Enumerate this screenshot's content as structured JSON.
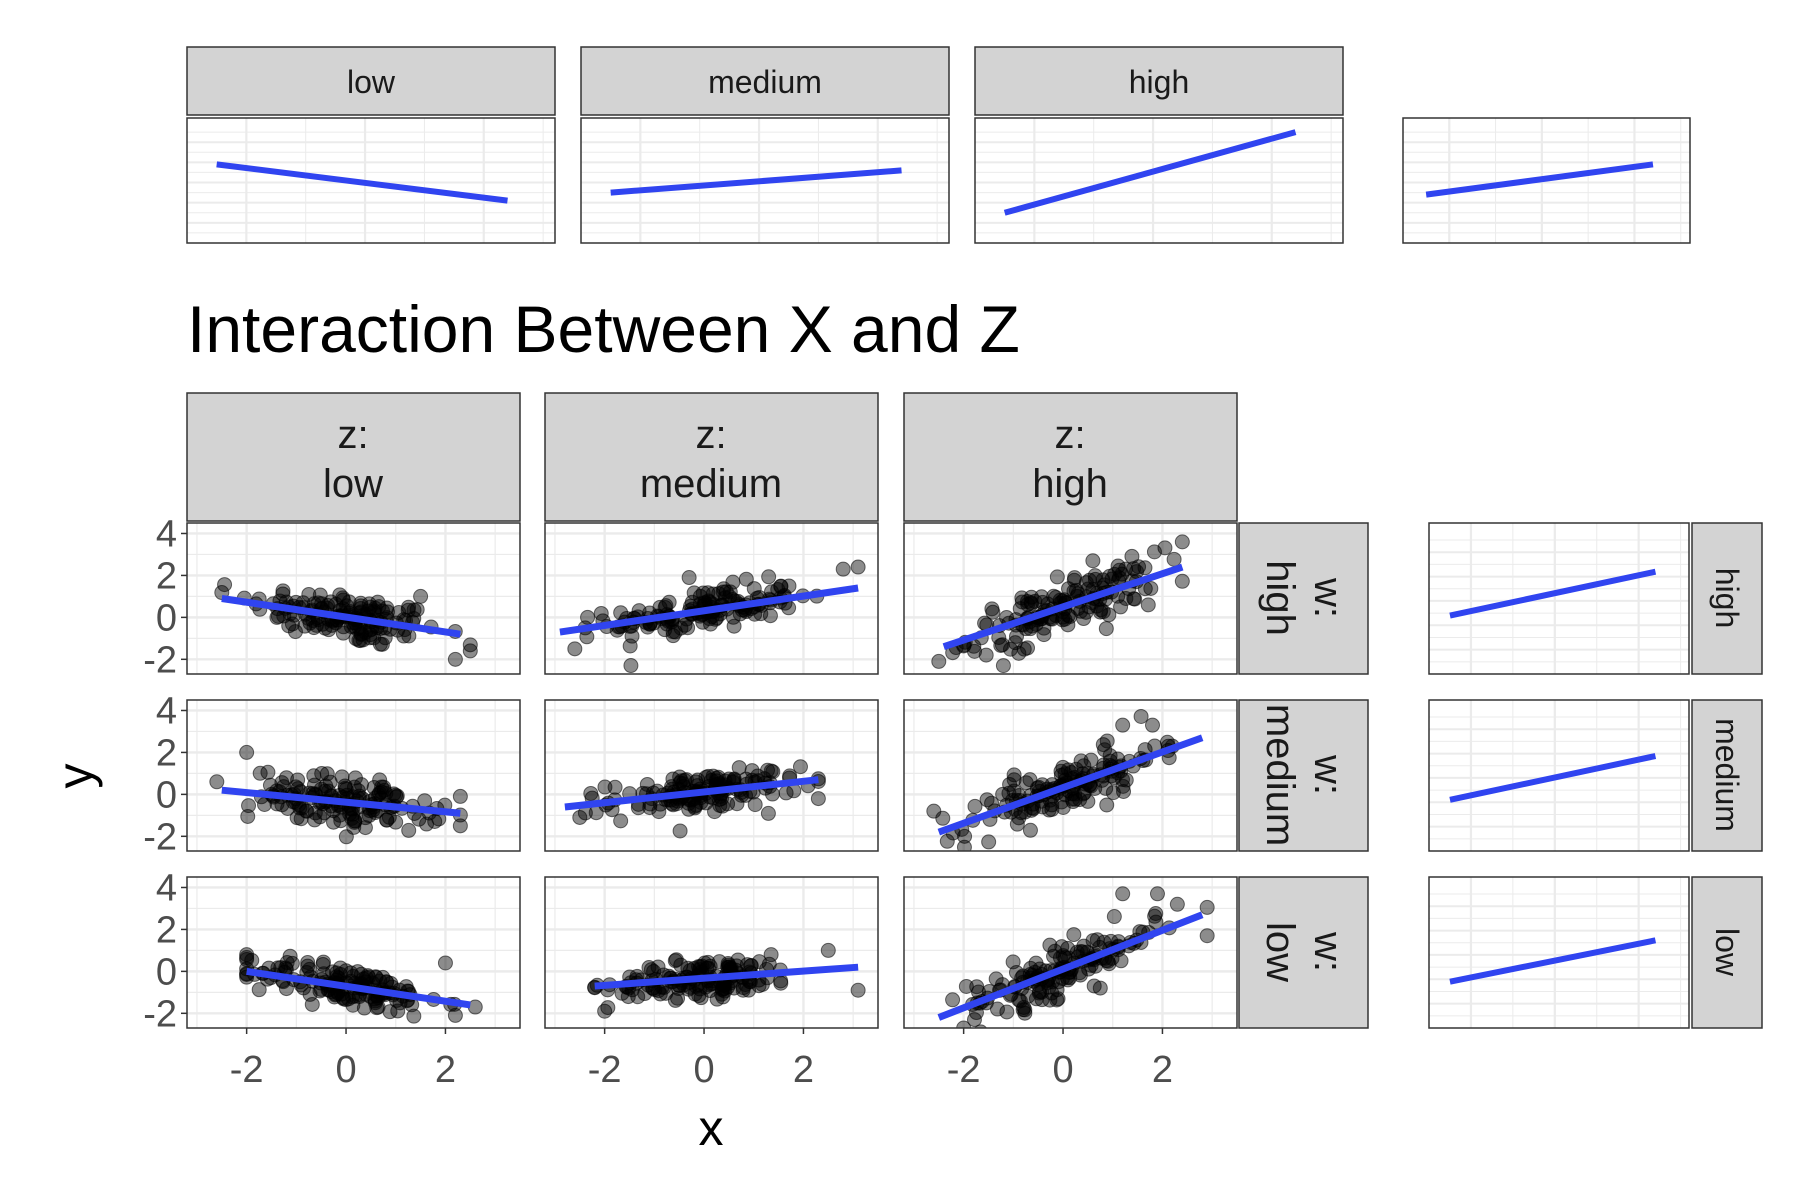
{
  "title": "Interaction Between X and Z",
  "x_axis_title": "x",
  "y_axis_title": "y",
  "x_ticks": [
    "-2",
    "0",
    "2"
  ],
  "y_ticks": [
    "4",
    "2",
    "0",
    "-2"
  ],
  "colors": {
    "fit_line": "#3044f0",
    "points": "#000000",
    "strip_fill": "#d3d3d3",
    "panel_border": "#333333",
    "grid": "#ebebeb"
  },
  "top_strip_labels": [
    "low",
    "medium",
    "high"
  ],
  "z_strip_labels": [
    {
      "prefix": "z:",
      "level": "low"
    },
    {
      "prefix": "z:",
      "level": "medium"
    },
    {
      "prefix": "z:",
      "level": "high"
    }
  ],
  "w_strip_labels": [
    {
      "prefix": "w:",
      "level": "high"
    },
    {
      "prefix": "w:",
      "level": "medium"
    },
    {
      "prefix": "w:",
      "level": "low"
    }
  ],
  "side_strip_labels": [
    "high",
    "medium",
    "low"
  ],
  "chart_data": [
    {
      "type": "line",
      "title": "",
      "panels": [
        "low",
        "medium",
        "high",
        ""
      ],
      "fits": [
        {
          "x": [
            -2.5,
            2.4
          ],
          "y": [
            0.9,
            -0.9
          ]
        },
        {
          "x": [
            -2.5,
            2.4
          ],
          "y": [
            -0.5,
            0.6
          ]
        },
        {
          "x": [
            -2.5,
            2.4
          ],
          "y": [
            -1.5,
            2.5
          ]
        },
        {
          "x": [
            -2.5,
            2.4
          ],
          "y": [
            -0.6,
            0.9
          ]
        }
      ]
    },
    {
      "type": "scatter",
      "title": "Interaction Between X and Z",
      "xlabel": "x",
      "ylabel": "y",
      "xlim": [
        -3.2,
        3.5
      ],
      "ylim": [
        -2.7,
        4.5
      ],
      "x_ticks": [
        -2,
        0,
        2
      ],
      "y_ticks": [
        -2,
        0,
        2,
        4
      ],
      "column_facet": {
        "name": "z",
        "levels": [
          "low",
          "medium",
          "high"
        ]
      },
      "row_facet": {
        "name": "w",
        "levels": [
          "high",
          "medium",
          "low"
        ]
      },
      "points_per_panel": 150,
      "panels": [
        {
          "w": "high",
          "z": "low",
          "fit": {
            "x": [
              -2.5,
              2.3
            ],
            "y": [
              0.9,
              -0.8
            ]
          },
          "x_range": [
            -2.5,
            2.5
          ],
          "residual_sd": 0.6,
          "extra_points": [
            {
              "x": 2.5,
              "y": -1.6
            },
            {
              "x": 2.2,
              "y": -2.0
            },
            {
              "x": 1.5,
              "y": 1.0
            }
          ]
        },
        {
          "w": "high",
          "z": "medium",
          "fit": {
            "x": [
              -2.9,
              3.1
            ],
            "y": [
              -0.7,
              1.4
            ]
          },
          "x_range": [
            -2.9,
            3.1
          ],
          "residual_sd": 0.5,
          "extra_points": [
            {
              "x": 3.1,
              "y": 2.4
            },
            {
              "x": 2.8,
              "y": 2.3
            },
            {
              "x": -0.3,
              "y": 1.9
            },
            {
              "x": -2.6,
              "y": -1.5
            }
          ]
        },
        {
          "w": "high",
          "z": "high",
          "fit": {
            "x": [
              -2.4,
              2.4
            ],
            "y": [
              -1.4,
              2.4
            ]
          },
          "x_range": [
            -2.5,
            2.4
          ],
          "residual_sd": 0.6,
          "extra_points": [
            {
              "x": 2.4,
              "y": 3.6
            },
            {
              "x": 0.6,
              "y": 2.7
            },
            {
              "x": -1.2,
              "y": -2.3
            },
            {
              "x": -2.5,
              "y": -2.1
            }
          ]
        },
        {
          "w": "medium",
          "z": "low",
          "fit": {
            "x": [
              -2.5,
              2.3
            ],
            "y": [
              0.2,
              -0.9
            ]
          },
          "x_range": [
            -2.6,
            2.3
          ],
          "residual_sd": 0.6,
          "extra_points": [
            {
              "x": -2.0,
              "y": 2.0
            },
            {
              "x": 2.3,
              "y": -1.5
            },
            {
              "x": -2.6,
              "y": 0.6
            }
          ]
        },
        {
          "w": "medium",
          "z": "medium",
          "fit": {
            "x": [
              -2.8,
              2.3
            ],
            "y": [
              -0.6,
              0.7
            ]
          },
          "x_range": [
            -2.8,
            2.3
          ],
          "residual_sd": 0.45,
          "extra_points": [
            {
              "x": 2.3,
              "y": -0.2
            },
            {
              "x": -2.5,
              "y": -1.1
            }
          ]
        },
        {
          "w": "medium",
          "z": "high",
          "fit": {
            "x": [
              -2.5,
              2.8
            ],
            "y": [
              -1.8,
              2.7
            ]
          },
          "x_range": [
            -2.6,
            2.8
          ],
          "residual_sd": 0.6,
          "extra_points": [
            {
              "x": 1.2,
              "y": 3.3
            },
            {
              "x": 1.8,
              "y": 3.3
            },
            {
              "x": 2.2,
              "y": 2.3
            },
            {
              "x": -2.6,
              "y": -0.8
            }
          ]
        },
        {
          "w": "low",
          "z": "low",
          "fit": {
            "x": [
              -2.0,
              2.5
            ],
            "y": [
              0.0,
              -1.6
            ]
          },
          "x_range": [
            -2.0,
            2.6
          ],
          "residual_sd": 0.5,
          "extra_points": [
            {
              "x": 2.0,
              "y": 0.4
            },
            {
              "x": 2.6,
              "y": -1.7
            },
            {
              "x": -2.0,
              "y": 0.8
            },
            {
              "x": 2.2,
              "y": -2.1
            }
          ]
        },
        {
          "w": "low",
          "z": "medium",
          "fit": {
            "x": [
              -2.2,
              3.1
            ],
            "y": [
              -0.7,
              0.2
            ]
          },
          "x_range": [
            -2.2,
            3.1
          ],
          "residual_sd": 0.45,
          "extra_points": [
            {
              "x": -2.0,
              "y": -1.9
            },
            {
              "x": 2.5,
              "y": 1.0
            },
            {
              "x": 3.1,
              "y": -0.9
            }
          ]
        },
        {
          "w": "low",
          "z": "high",
          "fit": {
            "x": [
              -2.5,
              2.8
            ],
            "y": [
              -2.2,
              2.7
            ]
          },
          "x_range": [
            -2.6,
            2.9
          ],
          "residual_sd": 0.6,
          "extra_points": [
            {
              "x": 1.2,
              "y": 3.7
            },
            {
              "x": 1.9,
              "y": 3.7
            },
            {
              "x": 2.3,
              "y": 3.2
            },
            {
              "x": 2.9,
              "y": 1.7
            },
            {
              "x": -2.0,
              "y": -2.7
            }
          ]
        }
      ]
    },
    {
      "type": "line",
      "title": "",
      "panels": [
        "high",
        "medium",
        "low"
      ],
      "fits": [
        {
          "x": [
            -2.5,
            2.4
          ],
          "y": [
            -0.6,
            1.2
          ]
        },
        {
          "x": [
            -2.5,
            2.4
          ],
          "y": [
            -0.9,
            0.9
          ]
        },
        {
          "x": [
            -2.5,
            2.4
          ],
          "y": [
            -1.1,
            0.6
          ]
        }
      ]
    }
  ]
}
